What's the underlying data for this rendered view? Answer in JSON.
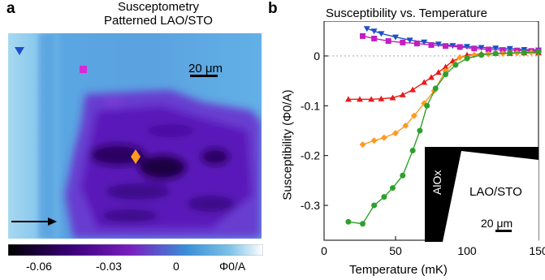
{
  "panel_a": {
    "letter": "a",
    "title_line1": "Susceptometry",
    "title_line2": "Patterned LAO/STO",
    "scalebar_label": "20 μm",
    "colorbar": {
      "ticks": [
        "-0.06",
        "-0.03",
        "0"
      ],
      "unit_label": "Φ0/A",
      "colors": [
        "#000000",
        "#3a007a",
        "#7a1fc0",
        "#3a8fd8",
        "#7ec3e8",
        "#ffffff"
      ]
    },
    "markers": [
      {
        "name": "blue-triangle",
        "color": "#1e4fc8"
      },
      {
        "name": "magenta-square",
        "color": "#d62ad6"
      },
      {
        "name": "orange-diamond",
        "color": "#ff9a20"
      }
    ],
    "arrow_icon": "right-arrow-icon"
  },
  "panel_b": {
    "letter": "b",
    "title": "Susceptibility vs. Temperature",
    "inset": {
      "label_aiox": "AlOx",
      "label_laosto": "LAO/STO",
      "scalebar_label": "20 μm"
    }
  },
  "chart_data": {
    "type": "line",
    "title": "Susceptibility vs. Temperature",
    "xlabel": "Temperature (mK)",
    "ylabel": "Susceptibility (Φ0/A)",
    "xlim": [
      0,
      150
    ],
    "ylim": [
      -0.37,
      0.07
    ],
    "xticks": [
      0,
      50,
      100,
      150
    ],
    "yticks": [
      0,
      -0.1,
      -0.2,
      -0.3
    ],
    "grid": false,
    "series": [
      {
        "marker": "triangle-down",
        "color": "#1e4fc8",
        "x": [
          30,
          35,
          40,
          50,
          60,
          70,
          80,
          90,
          100,
          110,
          120,
          130,
          140,
          150
        ],
        "y": [
          0.055,
          0.05,
          0.045,
          0.038,
          0.032,
          0.028,
          0.024,
          0.021,
          0.019,
          0.017,
          0.016,
          0.015,
          0.013,
          0.012
        ]
      },
      {
        "marker": "square",
        "color": "#c21ec2",
        "x": [
          27,
          35,
          45,
          55,
          65,
          75,
          85,
          95,
          105,
          115,
          125,
          135,
          145,
          150
        ],
        "y": [
          0.04,
          0.035,
          0.03,
          0.027,
          0.025,
          0.022,
          0.02,
          0.018,
          0.015,
          0.013,
          0.012,
          0.011,
          0.01,
          0.01
        ]
      },
      {
        "marker": "triangle-up",
        "color": "#e81c1c",
        "x": [
          17,
          25,
          33,
          40,
          48,
          55,
          62,
          70,
          75,
          80,
          85,
          90,
          100,
          110,
          120,
          130,
          140,
          150
        ],
        "y": [
          -0.087,
          -0.087,
          -0.087,
          -0.086,
          -0.084,
          -0.078,
          -0.068,
          -0.053,
          -0.043,
          -0.033,
          -0.022,
          -0.01,
          0.002,
          0.004,
          0.005,
          0.005,
          0.006,
          0.006
        ]
      },
      {
        "marker": "diamond",
        "color": "#ff9a20",
        "x": [
          27,
          35,
          42,
          50,
          57,
          63,
          70,
          77,
          85,
          95,
          105,
          115,
          125,
          135,
          145,
          150
        ],
        "y": [
          -0.178,
          -0.17,
          -0.164,
          -0.155,
          -0.14,
          -0.12,
          -0.095,
          -0.07,
          -0.03,
          -0.003,
          0.002,
          0.004,
          0.005,
          0.006,
          0.007,
          0.007
        ]
      },
      {
        "marker": "circle",
        "color": "#2ea02e",
        "x": [
          17,
          27,
          35,
          42,
          48,
          55,
          62,
          67,
          72,
          78,
          85,
          92,
          100,
          110,
          120,
          130,
          140,
          150
        ],
        "y": [
          -0.333,
          -0.337,
          -0.3,
          -0.283,
          -0.265,
          -0.24,
          -0.19,
          -0.15,
          -0.1,
          -0.065,
          -0.037,
          -0.018,
          -0.005,
          0.002,
          0.005,
          0.006,
          0.007,
          0.008
        ]
      }
    ]
  }
}
